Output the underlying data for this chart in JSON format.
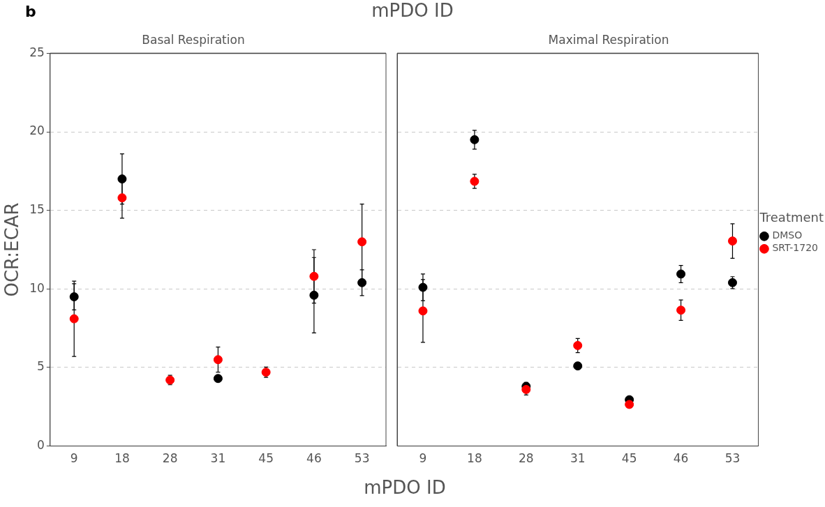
{
  "chart_data": [
    {
      "type": "scatter",
      "title": "Basal Respiration",
      "xlabel": "mPDO ID",
      "ylabel": "OCR:ECAR",
      "annotations": [
        "b",
        "mPDO ID"
      ],
      "categories": [
        "9",
        "18",
        "28",
        "31",
        "45",
        "46",
        "53"
      ],
      "ylim": [
        0,
        25
      ],
      "yticks": [
        0,
        5,
        10,
        15,
        20,
        25
      ],
      "grid": "y",
      "marker": "circle",
      "legend": false,
      "series": [
        {
          "color": "#000000",
          "values": [
            9.5,
            17.0,
            null,
            4.3,
            null,
            9.6,
            10.4
          ],
          "errors": [
            0.83,
            1.6,
            null,
            null,
            null,
            2.4,
            0.82
          ]
        },
        {
          "color": "#ff0000",
          "values": [
            8.1,
            15.8,
            4.2,
            5.5,
            4.7,
            10.8,
            13.0
          ],
          "errors": [
            2.4,
            1.3,
            0.3,
            0.8,
            0.33,
            1.7,
            2.4
          ]
        }
      ]
    },
    {
      "type": "scatter",
      "title": "Maximal Respiration",
      "legend_title": "Treatment",
      "categories": [
        "9",
        "18",
        "28",
        "31",
        "45",
        "46",
        "53"
      ],
      "ylim": [
        0,
        25
      ],
      "yticks": [
        0,
        5,
        10,
        15,
        20,
        25
      ],
      "tick_labels": "x",
      "grid": "y",
      "marker": "circle",
      "legend": "right",
      "series": [
        {
          "name": "DMSO",
          "color": "#000000",
          "values": [
            10.1,
            19.5,
            3.8,
            5.1,
            2.95,
            10.95,
            10.4
          ],
          "errors": [
            0.85,
            0.6,
            0.25,
            0.2,
            null,
            0.55,
            0.38
          ]
        },
        {
          "name": "SRT-1720",
          "color": "#ff0000",
          "values": [
            8.6,
            16.85,
            3.6,
            6.4,
            2.65,
            8.65,
            13.05
          ],
          "errors": [
            2.0,
            0.45,
            0.35,
            0.45,
            null,
            0.65,
            1.1
          ]
        }
      ]
    }
  ]
}
